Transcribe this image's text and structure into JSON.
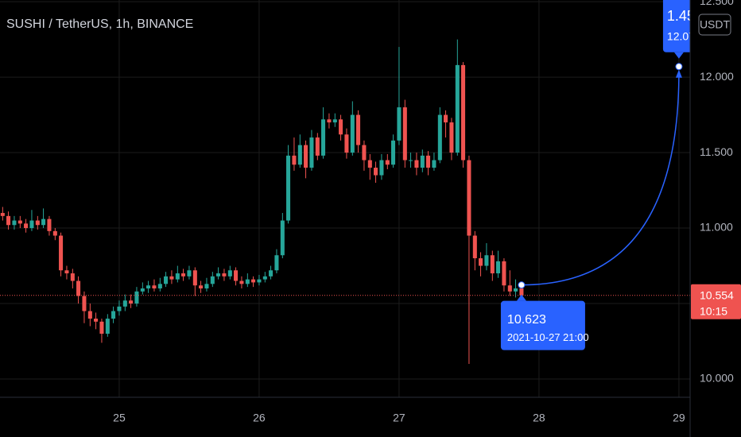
{
  "chart_data": {
    "type": "candlestick",
    "title": "SUSHI / TetherUS, 1h, BINANCE",
    "currency": "USDT",
    "up_color": "#26a69a",
    "down_color": "#ef5350",
    "grid": true,
    "xlim": [
      24.148,
      29.08
    ],
    "ylim": [
      9.879,
      12.511
    ],
    "xticks": [
      25,
      26,
      27,
      28,
      29
    ],
    "yticks": [
      {
        "value": 10,
        "label": "10.000"
      },
      {
        "value": 10.5,
        "label": "10.500"
      },
      {
        "value": 11,
        "label": "11.000"
      },
      {
        "value": 11.5,
        "label": "11.500"
      },
      {
        "value": 12,
        "label": "12.000"
      },
      {
        "value": 12.5,
        "label": "12.500"
      }
    ],
    "x": [
      24.167,
      24.208,
      24.25,
      24.292,
      24.333,
      24.375,
      24.417,
      24.458,
      24.5,
      24.542,
      24.583,
      24.625,
      24.667,
      24.708,
      24.75,
      24.792,
      24.833,
      24.875,
      24.917,
      24.958,
      25,
      25.042,
      25.083,
      25.125,
      25.167,
      25.208,
      25.25,
      25.292,
      25.333,
      25.375,
      25.417,
      25.458,
      25.5,
      25.542,
      25.583,
      25.625,
      25.667,
      25.708,
      25.75,
      25.792,
      25.833,
      25.875,
      25.917,
      25.958,
      26,
      26.042,
      26.083,
      26.125,
      26.167,
      26.208,
      26.25,
      26.292,
      26.333,
      26.375,
      26.417,
      26.458,
      26.5,
      26.542,
      26.583,
      26.625,
      26.667,
      26.708,
      26.75,
      26.792,
      26.833,
      26.875,
      26.917,
      26.958,
      27,
      27.042,
      27.083,
      27.125,
      27.167,
      27.208,
      27.25,
      27.292,
      27.333,
      27.375,
      27.417,
      27.458,
      27.5,
      27.542,
      27.583,
      27.625,
      27.667,
      27.708,
      27.75,
      27.792,
      27.833,
      27.875
    ],
    "open": [
      11.1,
      11.08,
      11.02,
      11.05,
      11.03,
      11.0,
      11.05,
      11.02,
      11.06,
      10.98,
      10.95,
      10.72,
      10.7,
      10.65,
      10.55,
      10.45,
      10.4,
      10.38,
      10.3,
      10.4,
      10.45,
      10.48,
      10.52,
      10.5,
      10.58,
      10.6,
      10.62,
      10.6,
      10.63,
      10.68,
      10.66,
      10.7,
      10.68,
      10.72,
      10.62,
      10.6,
      10.63,
      10.68,
      10.7,
      10.68,
      10.72,
      10.65,
      10.63,
      10.66,
      10.64,
      10.66,
      10.68,
      10.72,
      10.82,
      11.05,
      11.48,
      11.42,
      11.55,
      11.4,
      11.6,
      11.48,
      11.72,
      11.7,
      11.72,
      11.62,
      11.5,
      11.75,
      11.55,
      11.45,
      11.4,
      11.35,
      11.45,
      11.42,
      11.58,
      11.8,
      11.45,
      11.45,
      11.4,
      11.48,
      11.4,
      11.45,
      11.75,
      11.7,
      11.5,
      12.08,
      11.45,
      10.95,
      10.8,
      10.75,
      10.82,
      10.7,
      10.78,
      10.62,
      10.58,
      10.6
    ],
    "high": [
      11.14,
      11.11,
      11.08,
      11.08,
      11.06,
      11.12,
      11.08,
      11.13,
      11.08,
      11.0,
      10.97,
      10.75,
      10.73,
      10.68,
      10.58,
      10.5,
      10.44,
      10.4,
      10.43,
      10.48,
      10.52,
      10.56,
      10.56,
      10.61,
      10.64,
      10.65,
      10.66,
      10.67,
      10.71,
      10.72,
      10.75,
      10.73,
      10.75,
      10.74,
      10.65,
      10.67,
      10.71,
      10.74,
      10.73,
      10.75,
      10.74,
      10.68,
      10.7,
      10.68,
      10.69,
      10.71,
      10.75,
      10.86,
      11.1,
      11.55,
      11.6,
      11.62,
      11.58,
      11.65,
      11.63,
      11.8,
      11.76,
      11.76,
      11.75,
      11.66,
      11.84,
      11.78,
      11.58,
      11.49,
      11.44,
      11.49,
      11.49,
      11.62,
      12.2,
      11.85,
      11.5,
      11.5,
      11.52,
      11.51,
      11.5,
      11.8,
      11.78,
      11.73,
      12.25,
      12.1,
      11.48,
      10.98,
      10.84,
      10.9,
      10.85,
      10.85,
      10.8,
      10.72,
      10.66,
      10.64
    ],
    "low": [
      11.05,
      10.99,
      10.99,
      11.0,
      10.97,
      10.98,
      10.99,
      11.0,
      10.95,
      10.92,
      10.68,
      10.66,
      10.6,
      10.5,
      10.37,
      10.35,
      10.33,
      10.24,
      10.28,
      10.37,
      10.42,
      10.45,
      10.47,
      10.48,
      10.56,
      10.57,
      10.58,
      10.58,
      10.61,
      10.63,
      10.64,
      10.65,
      10.66,
      10.55,
      10.57,
      10.58,
      10.61,
      10.66,
      10.65,
      10.66,
      10.62,
      10.6,
      10.61,
      10.61,
      10.62,
      10.64,
      10.66,
      10.7,
      10.8,
      11.03,
      11.38,
      11.4,
      11.33,
      11.38,
      11.45,
      11.46,
      11.66,
      11.67,
      11.58,
      11.46,
      11.48,
      11.5,
      11.38,
      11.32,
      11.3,
      11.32,
      11.39,
      11.4,
      11.55,
      11.4,
      11.4,
      11.35,
      11.37,
      11.35,
      11.38,
      11.43,
      11.6,
      11.45,
      11.48,
      11.4,
      10.1,
      10.72,
      10.68,
      10.72,
      10.65,
      10.67,
      10.58,
      10.55,
      10.54,
      10.53
    ],
    "close": [
      11.08,
      11.02,
      11.05,
      11.03,
      11.0,
      11.05,
      11.02,
      11.06,
      10.98,
      10.95,
      10.72,
      10.7,
      10.65,
      10.55,
      10.45,
      10.4,
      10.38,
      10.3,
      10.4,
      10.45,
      10.48,
      10.52,
      10.5,
      10.58,
      10.6,
      10.62,
      10.6,
      10.63,
      10.68,
      10.66,
      10.7,
      10.68,
      10.72,
      10.62,
      10.6,
      10.63,
      10.68,
      10.7,
      10.68,
      10.72,
      10.65,
      10.63,
      10.66,
      10.64,
      10.66,
      10.68,
      10.72,
      10.82,
      11.05,
      11.48,
      11.42,
      11.55,
      11.4,
      11.6,
      11.48,
      11.72,
      11.7,
      11.72,
      11.62,
      11.5,
      11.75,
      11.55,
      11.45,
      11.4,
      11.35,
      11.45,
      11.42,
      11.58,
      11.8,
      11.45,
      11.45,
      11.4,
      11.48,
      11.4,
      11.45,
      11.75,
      11.7,
      11.5,
      12.08,
      11.45,
      10.95,
      10.8,
      10.75,
      10.82,
      10.7,
      10.78,
      10.62,
      10.58,
      10.6,
      10.554
    ],
    "last_price": 10.554,
    "last_price_color": "#ef5350",
    "countdown": "10:15",
    "projection": {
      "x": [
        27.875,
        29
      ],
      "y": [
        10.623,
        12.07
      ],
      "date": "2021-10-27 21:00",
      "change": 1.45,
      "color": "#2962ff"
    }
  }
}
